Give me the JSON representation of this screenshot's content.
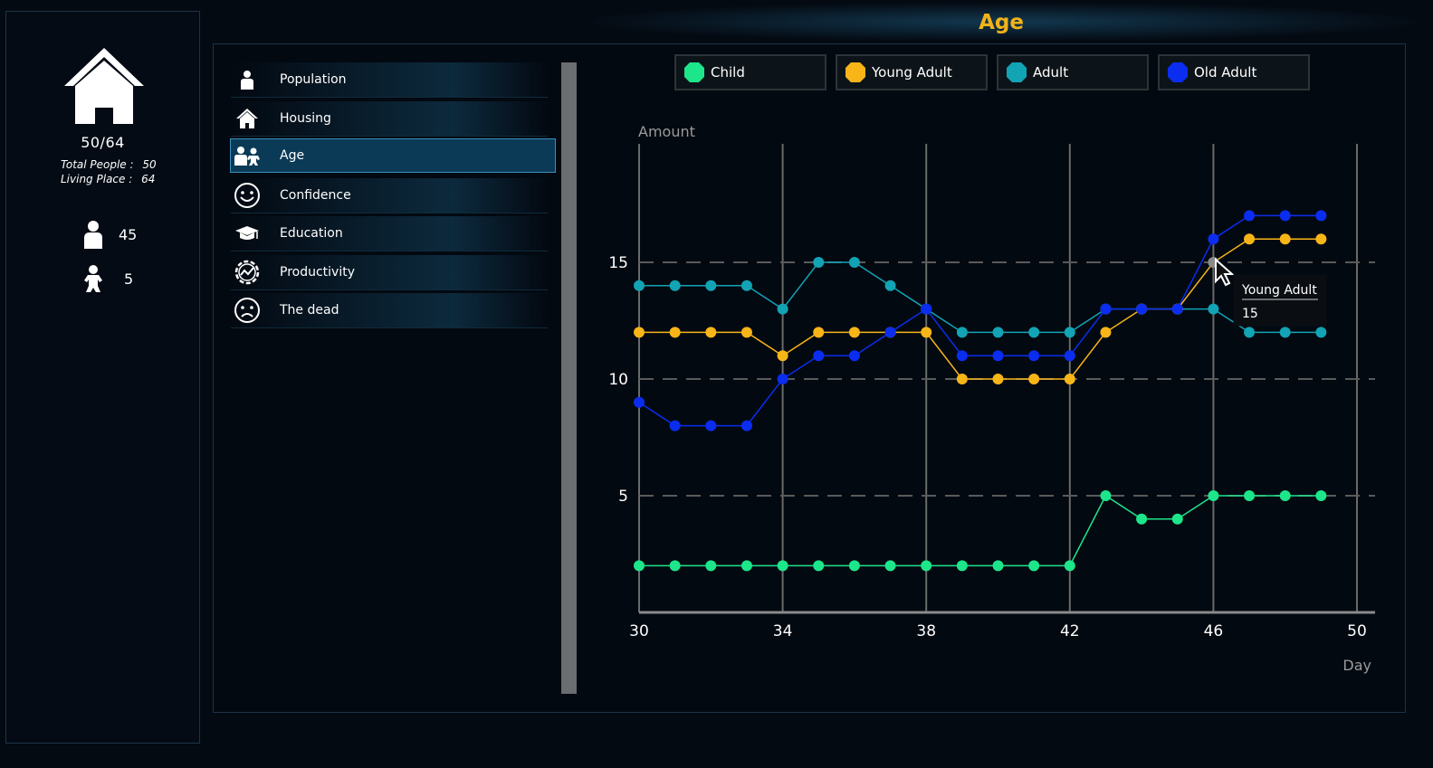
{
  "sidebar": {
    "capacity": "50/64",
    "total_people_label": "Total People :",
    "total_people_value": "50",
    "living_place_label": "Living Place :",
    "living_place_value": "64",
    "adults_count": "45",
    "children_count": "5"
  },
  "title": "Age",
  "menu": {
    "items": [
      {
        "label": "Population",
        "icon": "person-icon"
      },
      {
        "label": "Housing",
        "icon": "house-icon"
      },
      {
        "label": "Age",
        "icon": "family-icon"
      },
      {
        "label": "Confidence",
        "icon": "smiley-icon"
      },
      {
        "label": "Education",
        "icon": "graduation-cap-icon"
      },
      {
        "label": "Productivity",
        "icon": "gear-chart-icon"
      },
      {
        "label": "The dead",
        "icon": "sad-face-icon"
      }
    ],
    "active": "Age"
  },
  "legend": [
    {
      "label": "Child",
      "color": "#1de58a"
    },
    {
      "label": "Young Adult",
      "color": "#f7b518"
    },
    {
      "label": "Adult",
      "color": "#12a3b4"
    },
    {
      "label": "Old Adult",
      "color": "#0a2df0"
    }
  ],
  "tooltip": {
    "series": "Young Adult",
    "value": "15"
  },
  "chart_data": {
    "type": "line",
    "title": "",
    "xlabel": "Day",
    "ylabel": "Amount",
    "xlim": [
      30,
      50
    ],
    "ylim": [
      0,
      20
    ],
    "x_ticks": [
      "30",
      "34",
      "38",
      "42",
      "46",
      "50"
    ],
    "y_ticks": [
      "5",
      "10",
      "15"
    ],
    "grid": "horizontal dashed at 5,10,15; vertical solid at every 4 days",
    "legend_position": "top",
    "x": [
      30,
      31,
      32,
      33,
      34,
      35,
      36,
      37,
      38,
      39,
      40,
      41,
      42,
      43,
      44,
      45,
      46,
      47,
      48,
      49
    ],
    "series": [
      {
        "name": "Adult",
        "color": "#12a3b4",
        "values": [
          14,
          14,
          14,
          14,
          13,
          15,
          15,
          14,
          13,
          12,
          12,
          12,
          12,
          13,
          13,
          13,
          13,
          12,
          12,
          12
        ]
      },
      {
        "name": "Young Adult",
        "color": "#f7b518",
        "values": [
          12,
          12,
          12,
          12,
          11,
          12,
          12,
          12,
          12,
          10,
          10,
          10,
          10,
          12,
          13,
          13,
          15,
          16,
          16,
          16
        ]
      },
      {
        "name": "Old Adult",
        "color": "#0a2df0",
        "values": [
          9,
          8,
          8,
          8,
          10,
          11,
          11,
          12,
          13,
          11,
          11,
          11,
          11,
          13,
          13,
          13,
          16,
          17,
          17,
          17
        ]
      },
      {
        "name": "Child",
        "color": "#1de58a",
        "values": [
          2,
          2,
          2,
          2,
          2,
          2,
          2,
          2,
          2,
          2,
          2,
          2,
          2,
          5,
          4,
          4,
          5,
          5,
          5,
          5
        ]
      }
    ],
    "highlight": {
      "series": "Young Adult",
      "x": 46,
      "y": 15
    }
  }
}
